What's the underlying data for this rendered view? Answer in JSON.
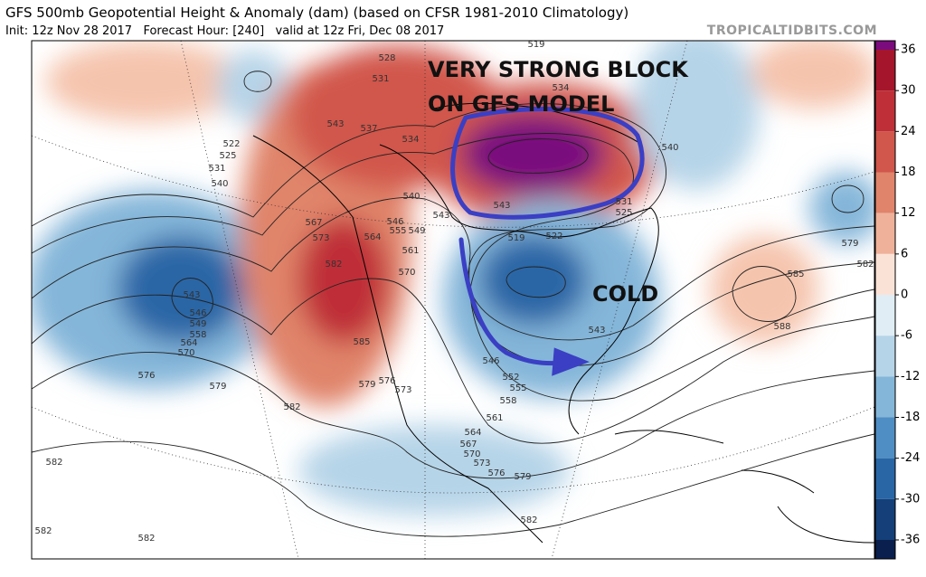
{
  "header": {
    "title": "GFS 500mb Geopotential Height & Anomaly (dam) (based on CFSR 1981-2010 Climatology)",
    "subtitle": "Init: 12z Nov 28 2017   Forecast Hour: [240]   valid at 12z Fri, Dec 08 2017",
    "site": "TROPICALTIDBITS.COM"
  },
  "annotations": [
    "VERY STRONG BLOCK",
    "ON GFS MODEL",
    "COLD"
  ],
  "contour_labels": [
    "522",
    "525",
    "531",
    "540",
    "543",
    "546",
    "549",
    "558",
    "564",
    "570",
    "576",
    "579",
    "582",
    "567",
    "573",
    "582",
    "585",
    "579",
    "576",
    "573",
    "528",
    "531",
    "537",
    "534",
    "543",
    "540",
    "543",
    "546",
    "555",
    "549",
    "561",
    "570",
    "564",
    "519",
    "522",
    "540",
    "531",
    "525",
    "543",
    "546",
    "552",
    "555",
    "558",
    "561",
    "564",
    "567",
    "570",
    "573",
    "576",
    "579",
    "582",
    "582",
    "582",
    "582",
    "579",
    "582",
    "585",
    "588",
    "543",
    "519",
    "534"
  ],
  "colorbar": {
    "ticks": [
      36,
      30,
      24,
      18,
      12,
      6,
      0,
      -6,
      -12,
      -18,
      -24,
      -30,
      -36
    ],
    "colors": [
      "#7a0c7e",
      "#a5152b",
      "#bf2f37",
      "#d1564b",
      "#e0846b",
      "#efb19a",
      "#fbe2d6",
      "#e0edf5",
      "#b6d4e8",
      "#84b6d9",
      "#4f8ec4",
      "#2966a6",
      "#143f78",
      "#0a1f4d"
    ]
  }
}
